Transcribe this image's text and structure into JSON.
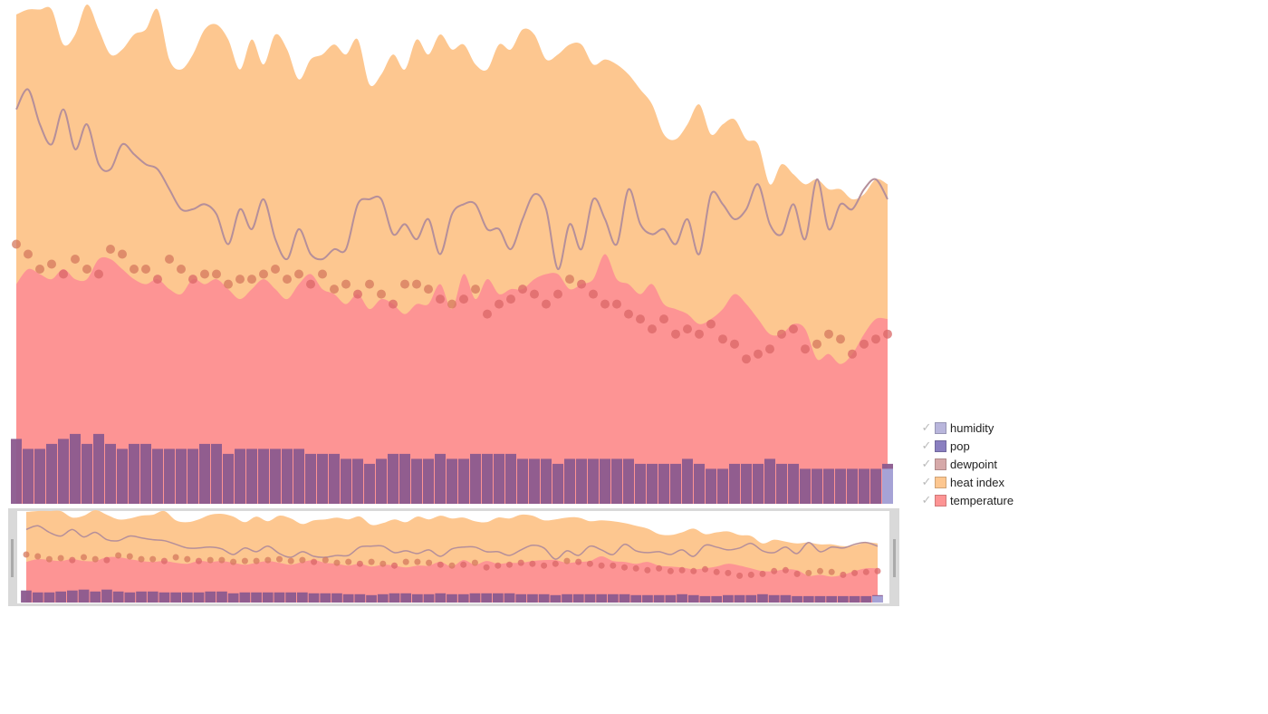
{
  "chart_data": {
    "type": "area",
    "title": "",
    "xlabel": "",
    "ylabel": "",
    "ylim": [
      0,
      100
    ],
    "grid": false,
    "legend": {
      "position": "bottom-right",
      "items": [
        {
          "key": "humidity",
          "label": "humidity",
          "color": "#b9b6dc",
          "checked": true
        },
        {
          "key": "pop",
          "label": "pop",
          "color": "#8a7fc0",
          "checked": true
        },
        {
          "key": "dewpoint",
          "label": "dewpoint",
          "color": "#d6a9a9",
          "checked": true
        },
        {
          "key": "heat_index",
          "label": "heat index",
          "color": "#fdc790",
          "checked": true
        },
        {
          "key": "temperature",
          "label": "temperature",
          "color": "#fd9494",
          "checked": true
        }
      ]
    },
    "x": [
      0,
      1,
      2,
      3,
      4,
      5,
      6,
      7,
      8,
      9,
      10,
      11,
      12,
      13,
      14,
      15,
      16,
      17,
      18,
      19,
      20,
      21,
      22,
      23,
      24,
      25,
      26,
      27,
      28,
      29,
      30,
      31,
      32,
      33,
      34,
      35,
      36,
      37,
      38,
      39,
      40,
      41,
      42,
      43,
      44,
      45,
      46,
      47,
      48,
      49,
      50,
      51,
      52,
      53,
      54,
      55,
      56,
      57,
      58,
      59,
      60,
      61,
      62,
      63,
      64,
      65,
      66,
      67,
      68,
      69,
      70,
      71,
      72,
      73,
      74
    ],
    "series": [
      {
        "name": "heat index",
        "type": "area",
        "color": "#fdc790",
        "values": [
          98,
          99,
          99,
          99,
          92,
          94,
          100,
          95,
          90,
          91,
          94,
          95,
          99,
          89,
          87,
          90,
          95,
          96,
          93,
          87,
          93,
          88,
          94,
          91,
          85,
          89,
          90,
          92,
          90,
          93,
          84,
          86,
          90,
          87,
          93,
          90,
          94,
          91,
          92,
          88,
          87,
          92,
          91,
          95,
          94,
          89,
          90,
          92,
          92,
          88,
          89,
          88,
          86,
          83,
          80,
          74,
          73,
          76,
          80,
          74,
          76,
          77,
          73,
          72,
          64,
          68,
          66,
          64,
          65,
          63,
          63,
          61,
          62,
          65,
          64
        ]
      },
      {
        "name": "temperature",
        "type": "area",
        "color": "#fd9494",
        "values": [
          44,
          47,
          46,
          45,
          47,
          45,
          45,
          49,
          49,
          47,
          45,
          44,
          45,
          43,
          42,
          45,
          44,
          45,
          43,
          41,
          43,
          45,
          43,
          41,
          44,
          46,
          43,
          42,
          40,
          42,
          39,
          41,
          40,
          38,
          40,
          40,
          44,
          39,
          46,
          41,
          45,
          42,
          43,
          43,
          45,
          46,
          46,
          43,
          44,
          45,
          50,
          45,
          44,
          42,
          44,
          40,
          39,
          38,
          36,
          37,
          39,
          42,
          40,
          37,
          34,
          34,
          36,
          35,
          29,
          30,
          28,
          30,
          34,
          37,
          37
        ]
      },
      {
        "name": "dewpoint",
        "type": "line",
        "color": "#b58f9a",
        "values": [
          79,
          83,
          76,
          72,
          79,
          71,
          76,
          68,
          67,
          72,
          70,
          68,
          67,
          63,
          59,
          59,
          60,
          58,
          52,
          59,
          55,
          61,
          53,
          49,
          55,
          50,
          49,
          51,
          51,
          60,
          61,
          61,
          54,
          56,
          53,
          57,
          50,
          58,
          60,
          60,
          55,
          55,
          51,
          57,
          62,
          59,
          47,
          56,
          51,
          61,
          57,
          52,
          63,
          56,
          54,
          55,
          52,
          57,
          50,
          62,
          60,
          57,
          59,
          64,
          56,
          54,
          60,
          53,
          65,
          55,
          60,
          59,
          63,
          65,
          61
        ]
      },
      {
        "name": "dewpoint points",
        "type": "scatter",
        "color": "#d4785d",
        "values": [
          52,
          50,
          47,
          48,
          46,
          49,
          47,
          46,
          51,
          50,
          47,
          47,
          45,
          49,
          47,
          45,
          46,
          46,
          44,
          45,
          45,
          46,
          47,
          45,
          46,
          44,
          46,
          43,
          44,
          42,
          44,
          42,
          40,
          44,
          44,
          43,
          41,
          40,
          41,
          43,
          38,
          40,
          41,
          43,
          42,
          40,
          42,
          45,
          44,
          42,
          40,
          40,
          38,
          37,
          35,
          37,
          34,
          35,
          34,
          36,
          33,
          32,
          29,
          30,
          31,
          34,
          35,
          31,
          32,
          34,
          33,
          30,
          32,
          33,
          34
        ]
      },
      {
        "name": "pop",
        "type": "bar",
        "color": "#8b5a8e",
        "values": [
          13,
          11,
          11,
          12,
          13,
          14,
          12,
          14,
          12,
          11,
          12,
          12,
          11,
          11,
          11,
          11,
          12,
          12,
          10,
          11,
          11,
          11,
          11,
          11,
          11,
          10,
          10,
          10,
          9,
          9,
          8,
          9,
          10,
          10,
          9,
          9,
          10,
          9,
          9,
          10,
          10,
          10,
          10,
          9,
          9,
          9,
          8,
          9,
          9,
          9,
          9,
          9,
          9,
          8,
          8,
          8,
          8,
          9,
          8,
          7,
          7,
          8,
          8,
          8,
          9,
          8,
          8,
          7,
          7,
          7,
          7,
          7,
          7,
          7,
          8
        ]
      },
      {
        "name": "humidity",
        "type": "bar",
        "color": "#a6a3d6",
        "values": [
          0,
          0,
          0,
          0,
          0,
          0,
          0,
          0,
          0,
          0,
          0,
          0,
          0,
          0,
          0,
          0,
          0,
          0,
          0,
          0,
          0,
          0,
          0,
          0,
          0,
          0,
          0,
          0,
          0,
          0,
          0,
          0,
          0,
          0,
          0,
          0,
          0,
          0,
          0,
          0,
          0,
          0,
          0,
          0,
          0,
          0,
          0,
          0,
          0,
          0,
          0,
          0,
          0,
          0,
          0,
          0,
          0,
          0,
          0,
          0,
          0,
          0,
          0,
          0,
          0,
          0,
          0,
          0,
          0,
          0,
          0,
          0,
          0,
          0,
          7
        ]
      }
    ]
  }
}
